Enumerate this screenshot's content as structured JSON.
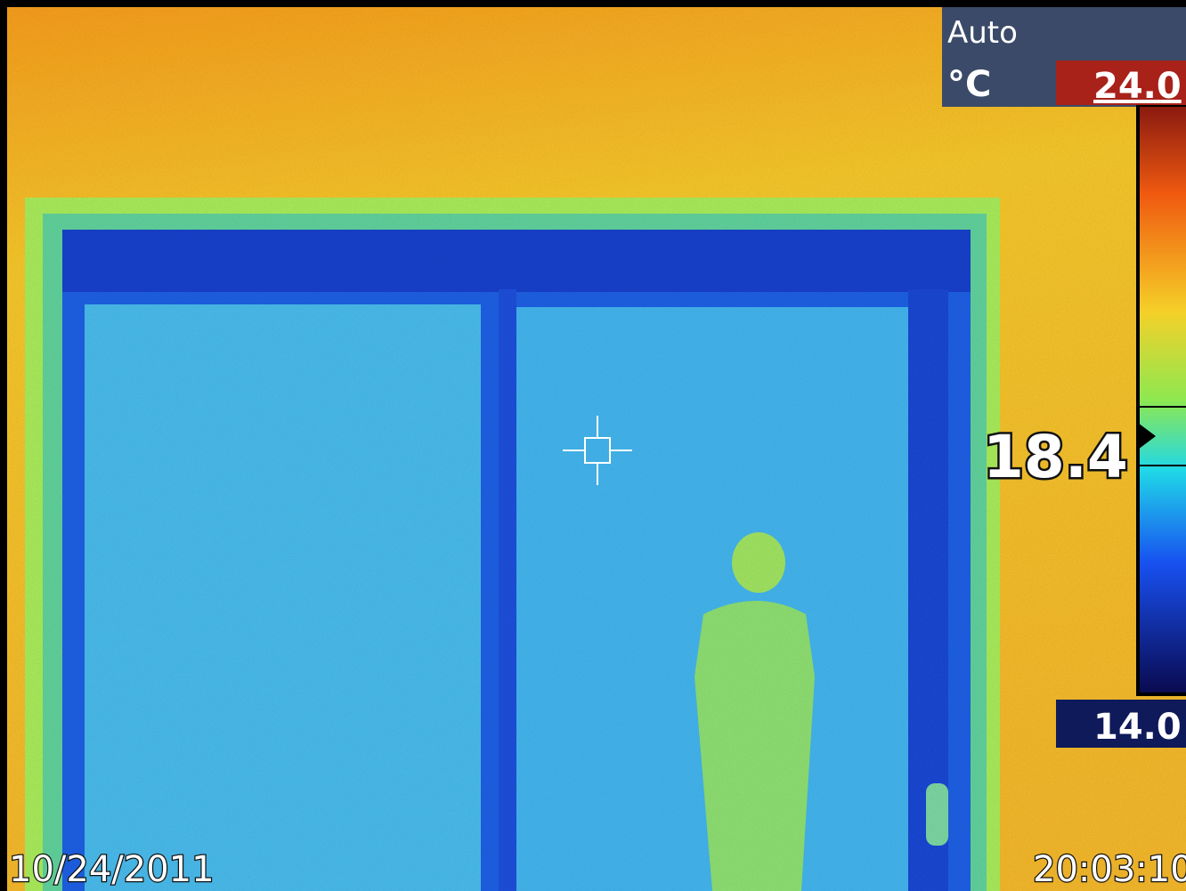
{
  "status": {
    "mode": "Auto",
    "unit": "°C"
  },
  "scale": {
    "max": "24.0",
    "min": "14.0"
  },
  "spot": {
    "value": "18.4"
  },
  "footer": {
    "date": "10/24/2011",
    "time": "20:03:10"
  }
}
